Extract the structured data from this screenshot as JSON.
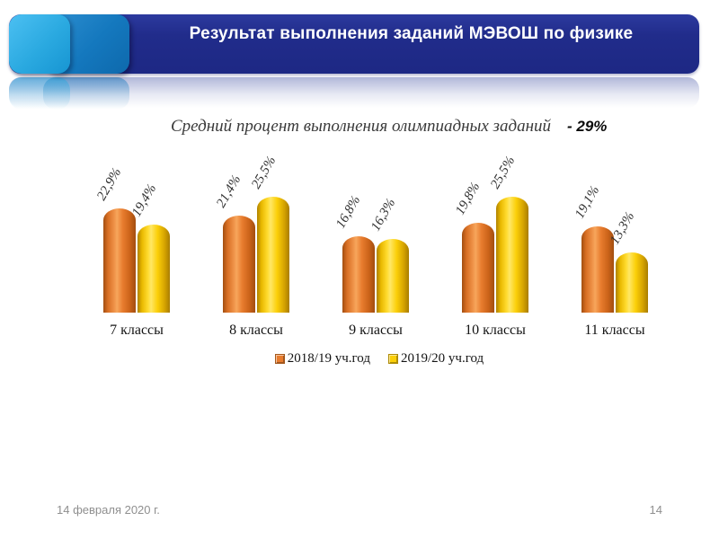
{
  "slide": {
    "header": {
      "title": "Результат выполнения заданий МЭВОШ по физике"
    },
    "footer": {
      "date": "14 февраля 2020 г.",
      "page": "14"
    },
    "colors": {
      "header_navy": "#212c8b",
      "square_light_blue": "#2aa9e0",
      "square_mid_blue": "#1478be",
      "series_orange": "#e87c2e",
      "series_yellow": "#fbcf08"
    }
  },
  "chart_data": {
    "type": "bar",
    "title": "Средний процент выполнения олимпиадных заданий",
    "annotation": "- 29%",
    "categories": [
      "7 классы",
      "8 классы",
      "9 классы",
      "10 классы",
      "11 классы"
    ],
    "series": [
      {
        "name": "2018/19 уч.год",
        "color": "#e87c2e",
        "values": [
          22.9,
          21.4,
          16.8,
          19.8,
          19.1
        ]
      },
      {
        "name": "2019/20 уч.год",
        "color": "#fbcf08",
        "values": [
          19.4,
          25.5,
          16.3,
          25.5,
          13.3
        ]
      }
    ],
    "value_labels": [
      [
        "22,9%",
        "21,4%",
        "16,8%",
        "19,8%",
        "19,1%"
      ],
      [
        "19,4%",
        "25,5%",
        "16,3%",
        "25,5%",
        "13,3%"
      ]
    ],
    "ylabel": "",
    "xlabel": "",
    "ylim": [
      0,
      30
    ],
    "grid": false,
    "legend_position": "bottom",
    "bar_style": "3d-cylinder"
  }
}
